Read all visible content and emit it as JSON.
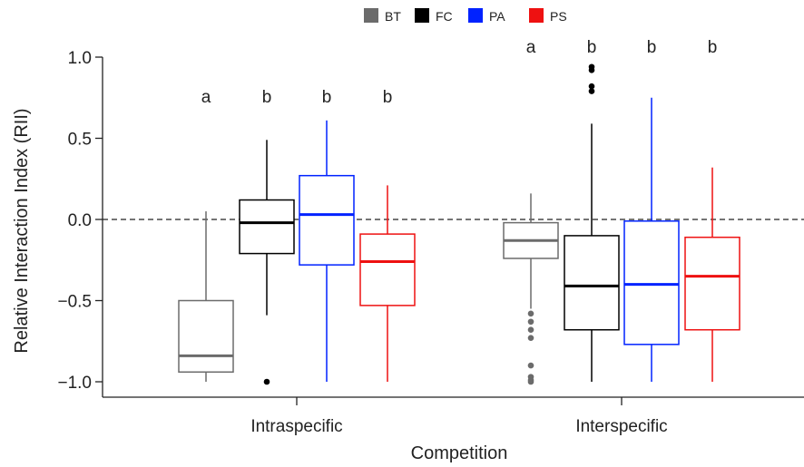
{
  "chart_data": {
    "type": "box",
    "xlabel": "Competition",
    "ylabel": "Relative Interaction Index (RII)",
    "ylim": [
      -1.1,
      1.1
    ],
    "yticks": [
      -1.0,
      -0.5,
      0.0,
      0.5,
      1.0
    ],
    "ytick_labels": [
      "−1.0",
      "−0.5",
      "0.0",
      "0.5",
      "1.0"
    ],
    "reference_line": {
      "y": 0.0,
      "style": "dashed"
    },
    "legend": {
      "position": "top",
      "entries": [
        {
          "name": "BT",
          "color": "#6b6b6b"
        },
        {
          "name": "FC",
          "color": "#000000"
        },
        {
          "name": "PA",
          "color": "#0022ff"
        },
        {
          "name": "PS",
          "color": "#ee1111"
        }
      ]
    },
    "groups": [
      {
        "label": "Intraspecific",
        "boxes": [
          {
            "series": "BT",
            "whisker_low": -1.0,
            "q1": -0.94,
            "median": -0.84,
            "q3": -0.5,
            "whisker_high": 0.05,
            "outliers": [],
            "letter": "a"
          },
          {
            "series": "FC",
            "whisker_low": -0.59,
            "q1": -0.21,
            "median": -0.02,
            "q3": 0.12,
            "whisker_high": 0.49,
            "outliers": [
              -1.0
            ],
            "letter": "b"
          },
          {
            "series": "PA",
            "whisker_low": -1.0,
            "q1": -0.28,
            "median": 0.03,
            "q3": 0.27,
            "whisker_high": 0.61,
            "outliers": [],
            "letter": "b"
          },
          {
            "series": "PS",
            "whisker_low": -1.0,
            "q1": -0.53,
            "median": -0.26,
            "q3": -0.09,
            "whisker_high": 0.21,
            "outliers": [],
            "letter": "b"
          }
        ]
      },
      {
        "label": "Interspecific",
        "boxes": [
          {
            "series": "BT",
            "whisker_low": -0.55,
            "q1": -0.24,
            "median": -0.13,
            "q3": -0.02,
            "whisker_high": 0.16,
            "outliers": [
              -0.58,
              -0.63,
              -0.68,
              -0.73,
              -0.9,
              -0.97,
              -0.99,
              -1.0
            ],
            "letter": "a"
          },
          {
            "series": "FC",
            "whisker_low": -1.0,
            "q1": -0.68,
            "median": -0.41,
            "q3": -0.1,
            "whisker_high": 0.59,
            "outliers": [
              0.79,
              0.82,
              0.92,
              0.94
            ],
            "letter": "b"
          },
          {
            "series": "PA",
            "whisker_low": -1.0,
            "q1": -0.77,
            "median": -0.4,
            "q3": -0.01,
            "whisker_high": 0.75,
            "outliers": [],
            "letter": "b"
          },
          {
            "series": "PS",
            "whisker_low": -1.0,
            "q1": -0.68,
            "median": -0.35,
            "q3": -0.11,
            "whisker_high": 0.32,
            "outliers": [],
            "letter": "b"
          }
        ]
      }
    ]
  }
}
